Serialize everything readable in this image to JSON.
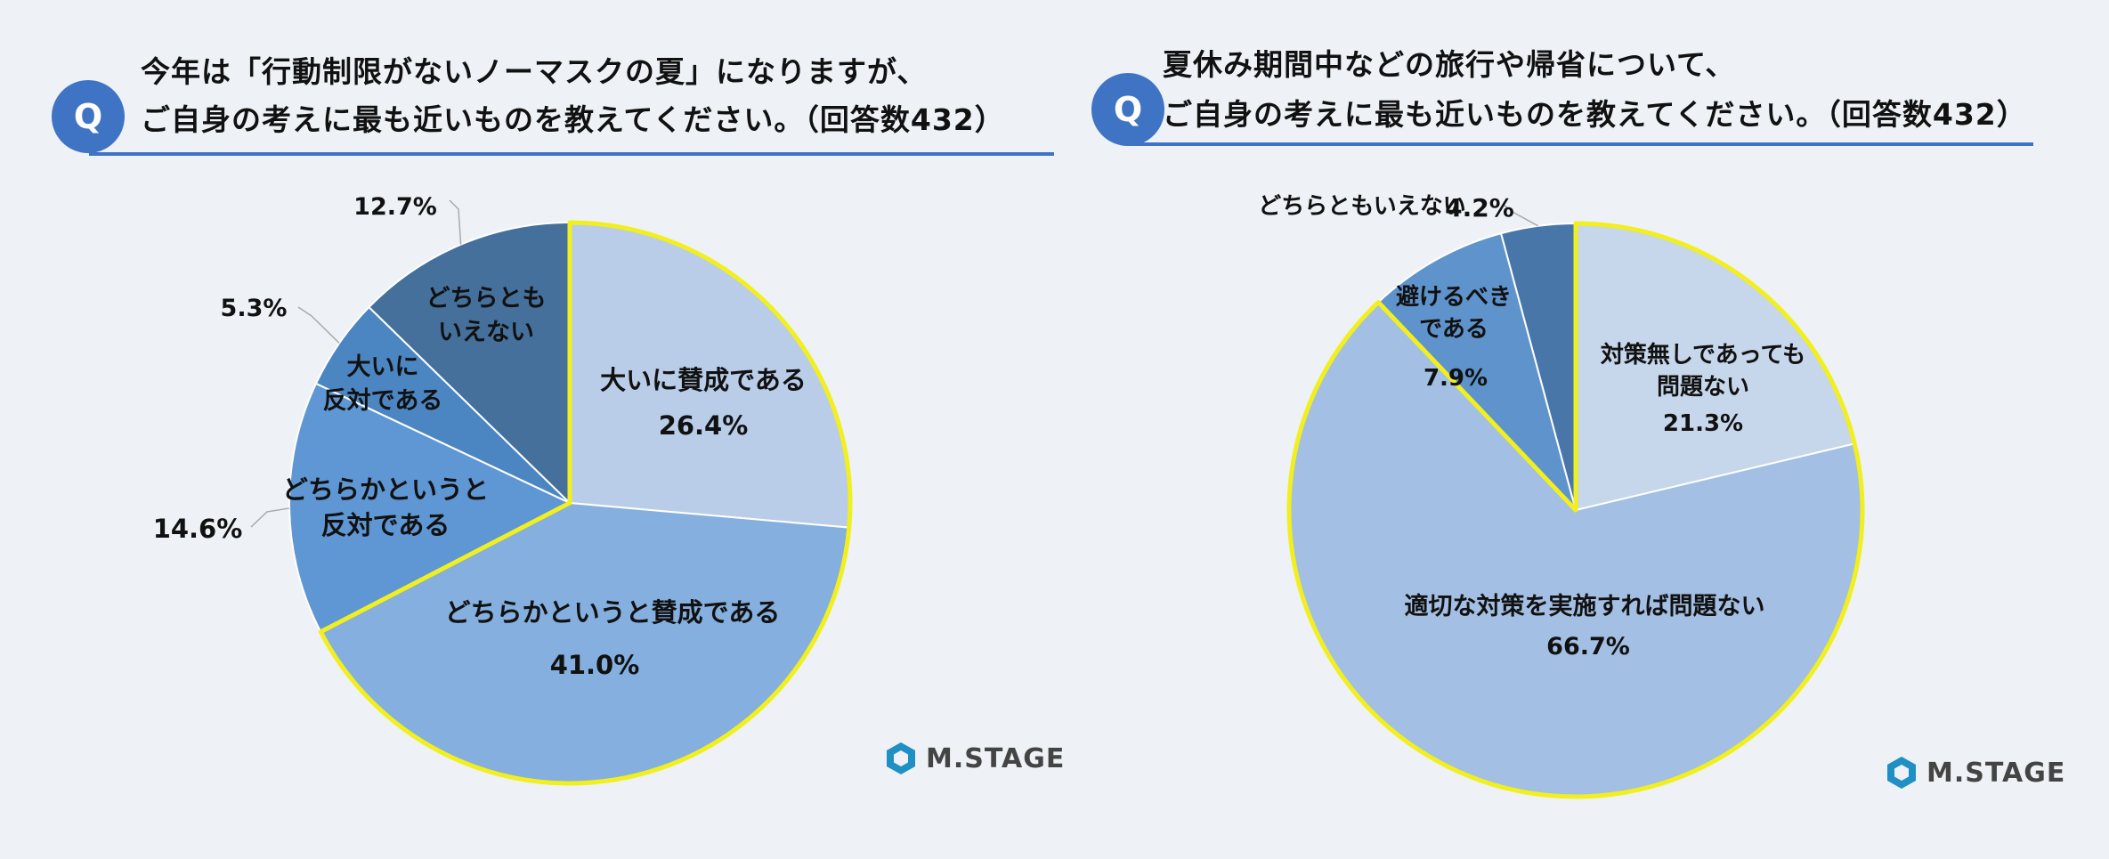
{
  "left": {
    "badge": "Q",
    "question_line1": "今年は「行動制限がないノーマスクの夏」になりますが、",
    "question_line2": "ご自身の考えに最も近いものを教えてください。（回答数432）",
    "logo": "M.STAGE"
  },
  "right": {
    "badge": "Q",
    "question_line1": "夏休み期間中などの旅行や帰省について、",
    "question_line2": "ご自身の考えに最も近いものを教えてください。（回答数432）",
    "logo": "M.STAGE"
  },
  "colors": {
    "accent": "#3f74c4",
    "highlight": "#f2ef1e"
  },
  "chart_data": [
    {
      "type": "pie",
      "title": "",
      "start": "12 o'clock, clockwise",
      "slices": [
        {
          "label": "大いに賛成である",
          "value": 26.4,
          "display": "26.4%",
          "color": "#b9cde8"
        },
        {
          "label": "どちらかというと賛成である",
          "value": 41.0,
          "display": "41.0%",
          "color": "#84afde"
        },
        {
          "label": "どちらかというと反対である",
          "value": 14.6,
          "display": "14.6%",
          "color": "#5e97d3"
        },
        {
          "label": "大いに反対である",
          "value": 5.3,
          "display": "5.3%",
          "color": "#4b86c2"
        },
        {
          "label": "どちらともいえない",
          "value": 12.7,
          "display": "12.7%",
          "color": "#45709c"
        }
      ],
      "highlighted": "賛成 (大いに賛成である + どちらかというと賛成である)"
    },
    {
      "type": "pie",
      "title": "",
      "start": "12 o'clock, clockwise",
      "slices": [
        {
          "label": "対策無しであっても問題ない",
          "value": 21.3,
          "display": "21.3%",
          "color": "#c6d6eb"
        },
        {
          "label": "適切な対策を実施すれば問題ない",
          "value": 66.7,
          "display": "66.7%",
          "color": "#a3bfe3"
        },
        {
          "label": "避けるべきである",
          "value": 7.9,
          "display": "7.9%",
          "color": "#5f93cc"
        },
        {
          "label": "どちらともいえない",
          "value": 4.2,
          "display": "4.2%",
          "color": "#4876a8"
        }
      ],
      "highlighted": "問題ない (対策無しであっても問題ない + 適切な対策を実施すれば問題ない)"
    }
  ]
}
